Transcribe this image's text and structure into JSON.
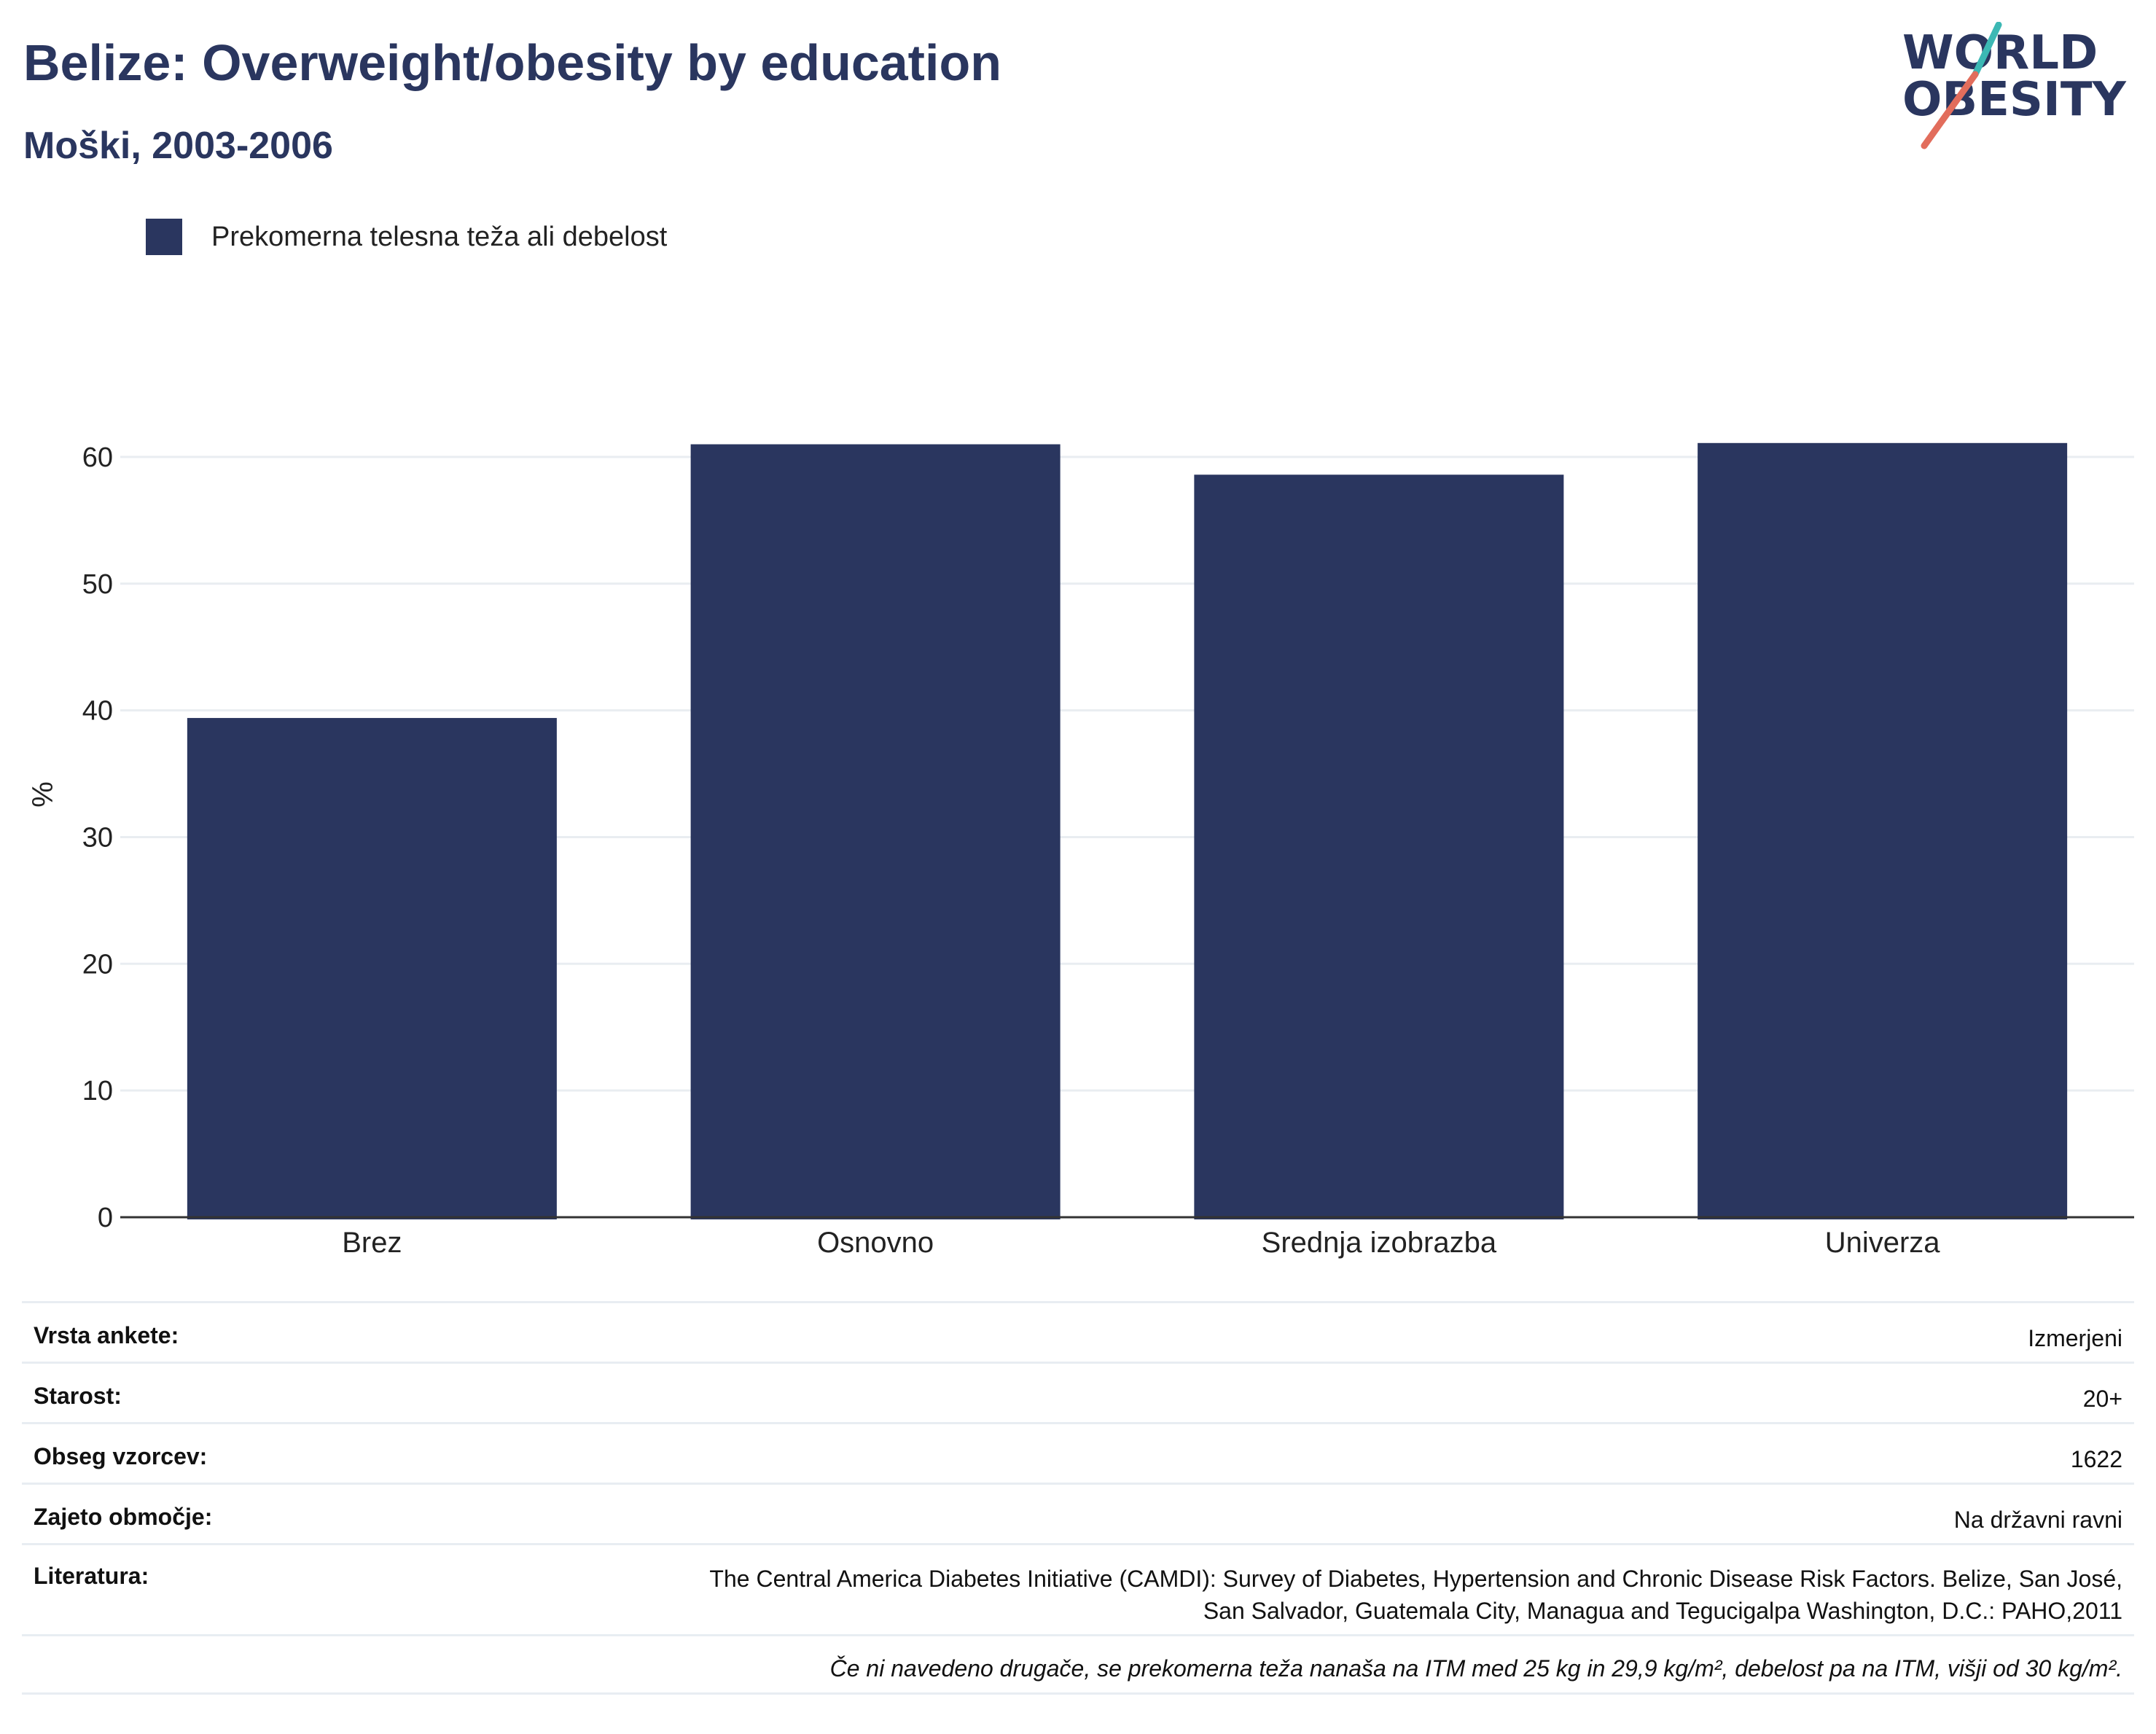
{
  "header": {
    "title": "Belize: Overweight/obesity by education",
    "subtitle": "Moški, 2003-2006"
  },
  "logo": {
    "line1": "WORLD",
    "line2": "OBESITY",
    "colors": {
      "text": "#2a365f",
      "teal": "#3cb8b4",
      "coral": "#e26d5c"
    }
  },
  "colors": {
    "bar": "#2a365f",
    "grid": "#e9edf1",
    "axis": "#333333",
    "text": "#222222"
  },
  "chart_data": {
    "type": "bar",
    "categories": [
      "Brez",
      "Osnovno",
      "Srednja izobrazba",
      "Univerza"
    ],
    "series": [
      {
        "name": "Prekomerna telesna teža ali debelost",
        "values": [
          39.4,
          61.0,
          58.6,
          61.1
        ]
      }
    ],
    "ylabel": "%",
    "ylim": [
      0,
      65
    ],
    "yticks": [
      0,
      10,
      20,
      30,
      40,
      50,
      60
    ],
    "grid": true,
    "legend_position": "top-left"
  },
  "info": {
    "rows": [
      {
        "label": "Vrsta ankete:",
        "value": "Izmerjeni"
      },
      {
        "label": "Starost:",
        "value": "20+"
      },
      {
        "label": "Obseg vzorcev:",
        "value": "1622"
      },
      {
        "label": "Zajeto območje:",
        "value": "Na državni ravni"
      },
      {
        "label": "Literatura:",
        "value_line1": "The Central America Diabetes Initiative (CAMDI): Survey of Diabetes, Hypertension and Chronic Disease Risk Factors. Belize, San José,",
        "value_line2": "San Salvador, Guatemala City, Managua and Tegucigalpa Washington, D.C.: PAHO,2011"
      }
    ],
    "note": "Če ni navedeno drugače, se prekomerna teža nanaša na ITM med 25 kg in 29,9 kg/m², debelost pa na ITM, višji od 30 kg/m²."
  }
}
